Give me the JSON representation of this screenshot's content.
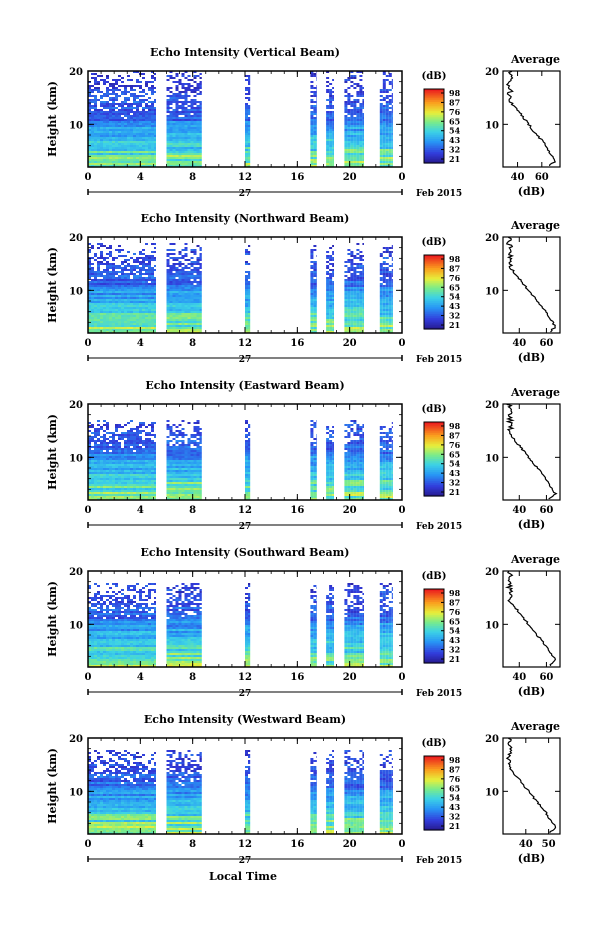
{
  "figure": {
    "xlabel": "Local Time",
    "date_label": "Feb 2015",
    "day_label": "27"
  },
  "chart_data": [
    {
      "type": "heatmap",
      "title": "Echo Intensity (Vertical Beam)",
      "ylabel": "Height (km)",
      "xlim": [
        0,
        24
      ],
      "ylim": [
        2,
        20
      ],
      "x_ticks": [
        "0",
        "4",
        "8",
        "12",
        "16",
        "20",
        "0"
      ],
      "y_ticks": [
        "20",
        "10"
      ],
      "colorbar": {
        "label": "(dB)",
        "ticks": [
          "98",
          "87",
          "76",
          "65",
          "54",
          "43",
          "32",
          "21"
        ]
      },
      "data_segments_hours": [
        [
          0,
          5.2
        ],
        [
          6,
          8.7
        ],
        [
          12,
          12.4
        ],
        [
          17,
          17.5
        ],
        [
          18.2,
          18.8
        ],
        [
          19.6,
          21.1
        ],
        [
          22.3,
          23.3
        ]
      ],
      "top_km": 20,
      "profile": {
        "title": "Average",
        "xlabel": "(dB)",
        "x_ticks": [
          "40",
          "60"
        ],
        "y_ticks": [
          "20",
          "10"
        ],
        "xlim": [
          28,
          75
        ]
      },
      "profile_scale": 1.0
    },
    {
      "type": "heatmap",
      "title": "Echo Intensity (Northward Beam)",
      "ylabel": "Height (km)",
      "xlim": [
        0,
        24
      ],
      "ylim": [
        2,
        20
      ],
      "x_ticks": [
        "0",
        "4",
        "8",
        "12",
        "16",
        "20",
        "0"
      ],
      "y_ticks": [
        "20",
        "10"
      ],
      "colorbar": {
        "label": "(dB)",
        "ticks": [
          "98",
          "87",
          "76",
          "65",
          "54",
          "43",
          "32",
          "21"
        ]
      },
      "data_segments_hours": [
        [
          0,
          5.2
        ],
        [
          6,
          8.7
        ],
        [
          12,
          12.4
        ],
        [
          17,
          17.5
        ],
        [
          18.2,
          18.8
        ],
        [
          19.6,
          21.1
        ],
        [
          22.3,
          23.3
        ]
      ],
      "top_km": 19,
      "profile": {
        "title": "Average",
        "xlabel": "(dB)",
        "x_ticks": [
          "40",
          "60"
        ],
        "y_ticks": [
          "20",
          "10"
        ],
        "xlim": [
          28,
          70
        ]
      },
      "profile_scale": 0.8
    },
    {
      "type": "heatmap",
      "title": "Echo Intensity (Eastward Beam)",
      "ylabel": "Height (km)",
      "xlim": [
        0,
        24
      ],
      "ylim": [
        2,
        20
      ],
      "x_ticks": [
        "0",
        "4",
        "8",
        "12",
        "16",
        "20",
        "0"
      ],
      "y_ticks": [
        "20",
        "10"
      ],
      "colorbar": {
        "label": "(dB)",
        "ticks": [
          "98",
          "87",
          "76",
          "65",
          "54",
          "43",
          "32",
          "21"
        ]
      },
      "data_segments_hours": [
        [
          0,
          5.2
        ],
        [
          6,
          8.7
        ],
        [
          12,
          12.4
        ],
        [
          17,
          17.5
        ],
        [
          18.2,
          18.8
        ],
        [
          19.6,
          21.1
        ],
        [
          22.3,
          23.3
        ]
      ],
      "top_km": 17,
      "profile": {
        "title": "Average",
        "xlabel": "(dB)",
        "x_ticks": [
          "40",
          "60"
        ],
        "y_ticks": [
          "20",
          "10"
        ],
        "xlim": [
          28,
          70
        ]
      },
      "profile_scale": 0.75
    },
    {
      "type": "heatmap",
      "title": "Echo Intensity (Southward Beam)",
      "ylabel": "Height (km)",
      "xlim": [
        0,
        24
      ],
      "ylim": [
        2,
        20
      ],
      "x_ticks": [
        "0",
        "4",
        "8",
        "12",
        "16",
        "20",
        "0"
      ],
      "y_ticks": [
        "20",
        "10"
      ],
      "colorbar": {
        "label": "(dB)",
        "ticks": [
          "98",
          "87",
          "76",
          "65",
          "54",
          "43",
          "32",
          "21"
        ]
      },
      "data_segments_hours": [
        [
          0,
          5.2
        ],
        [
          6,
          8.7
        ],
        [
          12,
          12.4
        ],
        [
          17,
          17.5
        ],
        [
          18.2,
          18.8
        ],
        [
          19.6,
          21.1
        ],
        [
          22.3,
          23.3
        ]
      ],
      "top_km": 18,
      "profile": {
        "title": "Average",
        "xlabel": "(dB)",
        "x_ticks": [
          "40",
          "60"
        ],
        "y_ticks": [
          "20",
          "10"
        ],
        "xlim": [
          28,
          70
        ]
      },
      "profile_scale": 0.75
    },
    {
      "type": "heatmap",
      "title": "Echo Intensity (Westward Beam)",
      "ylabel": "Height (km)",
      "xlim": [
        0,
        24
      ],
      "ylim": [
        2,
        20
      ],
      "x_ticks": [
        "0",
        "4",
        "8",
        "12",
        "16",
        "20",
        "0"
      ],
      "y_ticks": [
        "20",
        "10"
      ],
      "colorbar": {
        "label": "(dB)",
        "ticks": [
          "98",
          "87",
          "76",
          "65",
          "54",
          "43",
          "32",
          "21"
        ]
      },
      "data_segments_hours": [
        [
          0,
          5.2
        ],
        [
          6,
          8.7
        ],
        [
          12,
          12.4
        ],
        [
          17,
          17.5
        ],
        [
          18.2,
          18.8
        ],
        [
          19.6,
          21.1
        ],
        [
          22.3,
          23.3
        ]
      ],
      "top_km": 18,
      "profile": {
        "title": "Average",
        "xlabel": "(dB)",
        "x_ticks": [
          "40",
          "50"
        ],
        "y_ticks": [
          "20",
          "10"
        ],
        "xlim": [
          30,
          55
        ]
      },
      "profile_scale": 0.75
    }
  ]
}
